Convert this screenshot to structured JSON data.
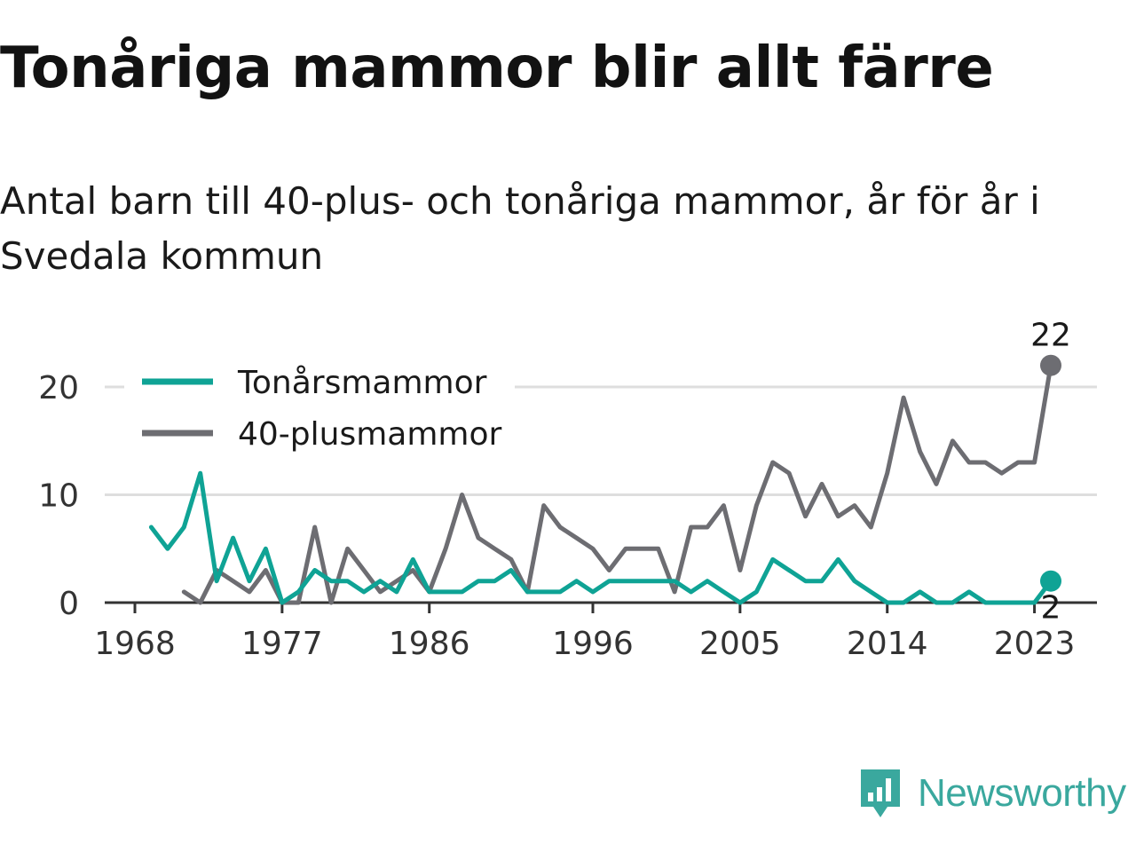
{
  "title": "Tonåriga mammor blir allt färre",
  "subtitle": "Antal barn till 40-plus- och tonåriga mammor, år för år i Svedala kommun",
  "brand": {
    "name": "Newsworthy",
    "icon": "bar-chart-speech-bubble-icon",
    "color": "#3aa89e"
  },
  "chart_data": {
    "type": "line",
    "x_ticks": [
      1968,
      1977,
      1986,
      1996,
      2005,
      2014,
      2023
    ],
    "y_ticks": [
      0,
      10,
      20
    ],
    "ylim": [
      0,
      22
    ],
    "grid": true,
    "legend_position": "top-left",
    "series": [
      {
        "name": "Tonårsmammor",
        "color": "#0fa395",
        "end_label": "2",
        "points": [
          [
            1969,
            7
          ],
          [
            1970,
            5
          ],
          [
            1971,
            7
          ],
          [
            1972,
            12
          ],
          [
            1973,
            2
          ],
          [
            1974,
            6
          ],
          [
            1975,
            2
          ],
          [
            1976,
            5
          ],
          [
            1977,
            0
          ],
          [
            1978,
            1
          ],
          [
            1979,
            3
          ],
          [
            1980,
            2
          ],
          [
            1981,
            2
          ],
          [
            1982,
            1
          ],
          [
            1983,
            2
          ],
          [
            1984,
            1
          ],
          [
            1985,
            4
          ],
          [
            1986,
            1
          ],
          [
            1987,
            1
          ],
          [
            1988,
            1
          ],
          [
            1989,
            2
          ],
          [
            1990,
            2
          ],
          [
            1991,
            3
          ],
          [
            1992,
            1
          ],
          [
            1993,
            1
          ],
          [
            1994,
            1
          ],
          [
            1995,
            2
          ],
          [
            1996,
            1
          ],
          [
            1997,
            2
          ],
          [
            1998,
            2
          ],
          [
            1999,
            2
          ],
          [
            2000,
            2
          ],
          [
            2001,
            2
          ],
          [
            2002,
            1
          ],
          [
            2003,
            2
          ],
          [
            2004,
            1
          ],
          [
            2005,
            0
          ],
          [
            2006,
            1
          ],
          [
            2007,
            4
          ],
          [
            2008,
            3
          ],
          [
            2009,
            2
          ],
          [
            2010,
            2
          ],
          [
            2011,
            4
          ],
          [
            2012,
            2
          ],
          [
            2013,
            1
          ],
          [
            2014,
            0
          ],
          [
            2015,
            0
          ],
          [
            2016,
            1
          ],
          [
            2017,
            0
          ],
          [
            2018,
            0
          ],
          [
            2019,
            1
          ],
          [
            2020,
            0
          ],
          [
            2021,
            0
          ],
          [
            2022,
            0
          ],
          [
            2023,
            0
          ],
          [
            2024,
            2
          ]
        ]
      },
      {
        "name": "40-plusmammor",
        "color": "#6d6d72",
        "end_label": "22",
        "points": [
          [
            1971,
            1
          ],
          [
            1972,
            0
          ],
          [
            1973,
            3
          ],
          [
            1974,
            2
          ],
          [
            1975,
            1
          ],
          [
            1976,
            3
          ],
          [
            1977,
            0
          ],
          [
            1978,
            0
          ],
          [
            1979,
            7
          ],
          [
            1980,
            0
          ],
          [
            1981,
            5
          ],
          [
            1982,
            3
          ],
          [
            1983,
            1
          ],
          [
            1984,
            2
          ],
          [
            1985,
            3
          ],
          [
            1986,
            1
          ],
          [
            1987,
            5
          ],
          [
            1988,
            10
          ],
          [
            1989,
            6
          ],
          [
            1990,
            5
          ],
          [
            1991,
            4
          ],
          [
            1992,
            1
          ],
          [
            1993,
            9
          ],
          [
            1994,
            7
          ],
          [
            1995,
            6
          ],
          [
            1996,
            5
          ],
          [
            1997,
            3
          ],
          [
            1998,
            5
          ],
          [
            1999,
            5
          ],
          [
            2000,
            5
          ],
          [
            2001,
            1
          ],
          [
            2002,
            7
          ],
          [
            2003,
            7
          ],
          [
            2004,
            9
          ],
          [
            2005,
            3
          ],
          [
            2006,
            9
          ],
          [
            2007,
            13
          ],
          [
            2008,
            12
          ],
          [
            2009,
            8
          ],
          [
            2010,
            11
          ],
          [
            2011,
            8
          ],
          [
            2012,
            9
          ],
          [
            2013,
            7
          ],
          [
            2014,
            12
          ],
          [
            2015,
            19
          ],
          [
            2016,
            14
          ],
          [
            2017,
            11
          ],
          [
            2018,
            15
          ],
          [
            2019,
            13
          ],
          [
            2020,
            13
          ],
          [
            2021,
            12
          ],
          [
            2022,
            13
          ],
          [
            2023,
            13
          ],
          [
            2024,
            22
          ]
        ]
      }
    ]
  }
}
